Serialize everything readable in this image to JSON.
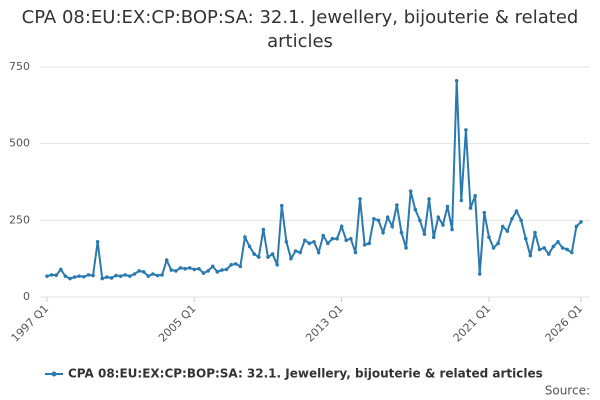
{
  "chart_data": {
    "type": "line",
    "title": "CPA 08:EU:EX:CP:BOP:SA: 32.1. Jewellery, bijouterie & related articles",
    "categories": [
      "1997 Q1",
      null,
      null,
      null,
      null,
      null,
      null,
      null,
      null,
      null,
      null,
      null,
      null,
      null,
      null,
      null,
      null,
      null,
      null,
      null,
      null,
      null,
      null,
      null,
      null,
      null,
      null,
      null,
      null,
      null,
      null,
      null,
      "2005 Q1",
      null,
      null,
      null,
      null,
      null,
      null,
      null,
      null,
      null,
      null,
      null,
      null,
      null,
      null,
      null,
      null,
      null,
      null,
      null,
      null,
      null,
      null,
      null,
      null,
      null,
      null,
      null,
      null,
      null,
      null,
      null,
      "2013 Q1",
      null,
      null,
      null,
      null,
      null,
      null,
      null,
      null,
      null,
      null,
      null,
      null,
      null,
      null,
      null,
      null,
      null,
      null,
      null,
      null,
      null,
      null,
      null,
      null,
      null,
      null,
      null,
      null,
      null,
      null,
      null,
      "2021 Q1",
      null,
      null,
      null,
      null,
      null,
      null,
      null,
      null,
      null,
      null,
      null,
      null,
      null,
      null,
      null,
      null,
      null,
      null,
      null,
      "2026 Q1"
    ],
    "series": [
      {
        "name": "CPA 08:EU:EX:CP:BOP:SA: 32.1. Jewellery, bijouterie & related articles",
        "color": "#2a7ab0",
        "values": [
          68,
          72,
          71,
          90,
          68,
          60,
          65,
          68,
          66,
          72,
          70,
          180,
          60,
          65,
          62,
          70,
          68,
          72,
          68,
          75,
          85,
          82,
          68,
          75,
          70,
          72,
          120,
          88,
          85,
          95,
          92,
          95,
          90,
          92,
          78,
          85,
          100,
          82,
          88,
          90,
          105,
          108,
          100,
          195,
          165,
          140,
          130,
          220,
          130,
          140,
          105,
          298,
          180,
          125,
          150,
          145,
          185,
          175,
          180,
          145,
          200,
          175,
          190,
          190,
          230,
          185,
          190,
          145,
          320,
          170,
          175,
          255,
          250,
          210,
          260,
          230,
          300,
          210,
          160,
          345,
          285,
          250,
          205,
          320,
          195,
          260,
          235,
          295,
          220,
          705,
          315,
          545,
          290,
          330,
          75,
          275,
          195,
          160,
          175,
          230,
          215,
          255,
          280,
          250,
          190,
          135,
          210,
          155,
          160,
          140,
          165,
          180,
          160,
          155,
          145,
          230,
          245
        ]
      }
    ],
    "ylim": [
      0,
      750
    ],
    "yticks": [
      0,
      250,
      500,
      750
    ],
    "grid": true,
    "source": "Source:"
  }
}
